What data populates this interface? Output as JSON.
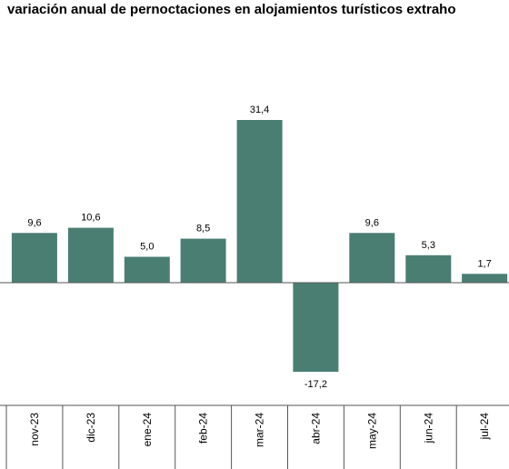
{
  "chart_data": {
    "type": "bar",
    "title": "variación anual de pernoctaciones en alojamientos turísticos extraho",
    "categories": [
      "nov-23",
      "dic-23",
      "ene-24",
      "feb-24",
      "mar-24",
      "abr-24",
      "may-24",
      "jun-24",
      "jul-24"
    ],
    "values": [
      9.6,
      10.6,
      5.0,
      8.5,
      31.4,
      -17.2,
      9.6,
      5.3,
      1.7
    ],
    "value_labels": [
      "9,6",
      "10,6",
      "5,0",
      "8,5",
      "31,4",
      "-17,2",
      "9,6",
      "5,3",
      "1,7"
    ],
    "ylim": [
      -23,
      37
    ],
    "bar_color": "#4a7e73",
    "grid": false
  }
}
